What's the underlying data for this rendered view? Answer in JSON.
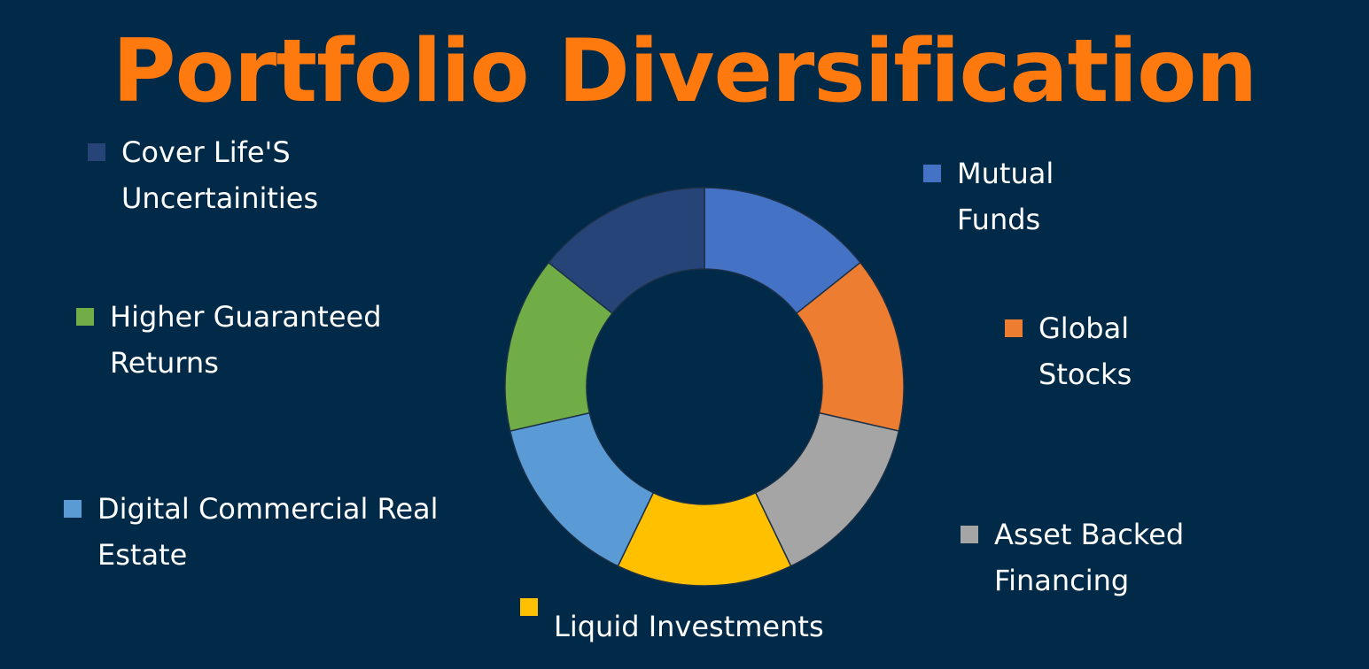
{
  "chart_data": {
    "type": "pie",
    "variant": "donut",
    "title": "Portfolio Diversification",
    "categories": [
      "Mutual Funds",
      "Global Stocks",
      "Asset Backed Financing",
      "Liquid Investments",
      "Digital Commercial Real Estate",
      "Higher Guaranteed Returns",
      "Cover Life'S Uncertainities"
    ],
    "legend_lines": [
      "Mutual\nFunds",
      "Global\nStocks",
      "Asset Backed\nFinancing",
      "Liquid Investments",
      "Digital Commercial Real\nEstate",
      "Higher Guaranteed\nReturns",
      "Cover Life'S\nUncertainities"
    ],
    "values": [
      14.29,
      14.29,
      14.29,
      14.29,
      14.29,
      14.29,
      14.29
    ],
    "colors": [
      "#4472c4",
      "#ed7d31",
      "#a5a5a5",
      "#ffc000",
      "#5b9bd5",
      "#70ad47",
      "#264478"
    ],
    "start_angle_deg": 0,
    "direction": "clockwise",
    "legend": "around-chart"
  }
}
